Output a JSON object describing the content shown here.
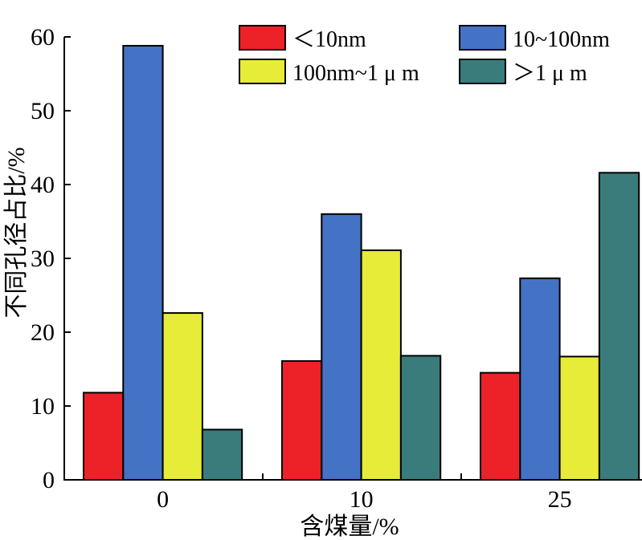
{
  "chart_data": {
    "type": "bar",
    "categories": [
      "0",
      "10",
      "25"
    ],
    "series": [
      {
        "name": "＜10nm",
        "values": [
          11.8,
          16.1,
          14.5
        ],
        "color": "#ED2128"
      },
      {
        "name": "10~100nm",
        "values": [
          58.8,
          36.0,
          27.3
        ],
        "color": "#4472C4"
      },
      {
        "name": "100nm~1 μ m",
        "values": [
          22.6,
          31.1,
          16.7
        ],
        "color": "#E6EC38"
      },
      {
        "name": "＞1 μ m",
        "values": [
          6.8,
          16.8,
          41.6
        ],
        "color": "#3A7C7C"
      }
    ],
    "xlabel": "含煤量/%",
    "ylabel": "不同孔径占比/%",
    "ylim": [
      0,
      60
    ],
    "yticks": [
      0,
      10,
      20,
      30,
      40,
      50,
      60
    ],
    "grid": false,
    "legend": "top-right"
  }
}
